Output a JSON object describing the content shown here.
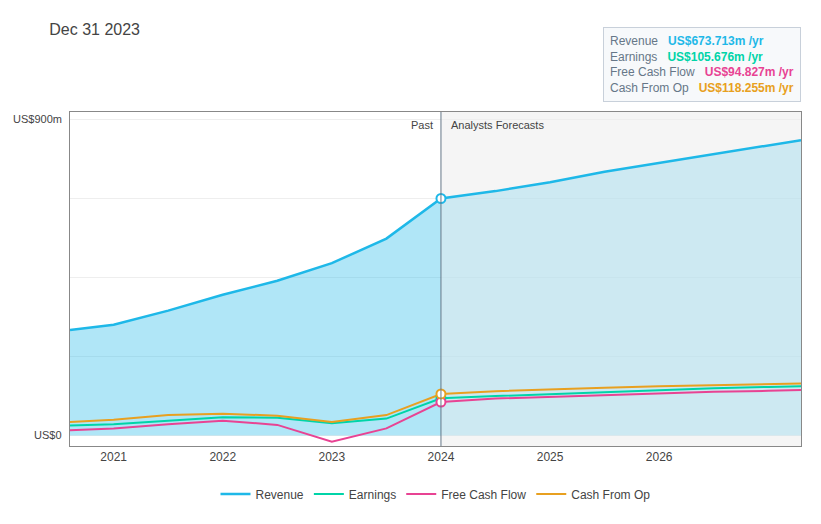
{
  "chart_data": {
    "type": "line",
    "title": "Dec 31 2023",
    "x": [
      2020.6,
      2021.0,
      2021.5,
      2022.0,
      2022.5,
      2023.0,
      2023.5,
      2024.0,
      2024.5,
      2025.0,
      2025.5,
      2026.0,
      2026.5,
      2027.0,
      2027.3
    ],
    "series": [
      {
        "name": "Revenue",
        "color": "#1eb8e8",
        "values": [
          300,
          315,
          355,
          400,
          440,
          490,
          560,
          674,
          695,
          720,
          750,
          775,
          800,
          825,
          840
        ]
      },
      {
        "name": "Earnings",
        "color": "#00d4a8",
        "values": [
          28,
          32,
          42,
          52,
          50,
          35,
          48,
          106,
          112,
          118,
          124,
          130,
          134,
          138,
          140
        ]
      },
      {
        "name": "Free Cash Flow",
        "color": "#e84393",
        "values": [
          15,
          20,
          32,
          42,
          30,
          -18,
          20,
          95,
          105,
          110,
          116,
          120,
          124,
          127,
          129
        ]
      },
      {
        "name": "Cash From Op",
        "color": "#e8a020",
        "values": [
          38,
          45,
          58,
          62,
          56,
          38,
          58,
          118,
          126,
          132,
          136,
          140,
          143,
          146,
          148
        ]
      }
    ],
    "xlim": [
      2020.6,
      2027.3
    ],
    "xticks": [
      2021,
      2022,
      2023,
      2024,
      2025,
      2026
    ],
    "ylim": [
      -30,
      920
    ],
    "yticks": [
      0,
      225,
      450,
      675,
      900
    ],
    "grid": true,
    "tick_labels": "x",
    "legend": "bottom",
    "divider": 2024.0,
    "region_labels": [
      "Past",
      "Analysts Forecasts"
    ],
    "y_labels": [
      {
        "value": 900,
        "label": "US$900m"
      },
      {
        "value": 0,
        "label": "US$0"
      }
    ],
    "tooltip_rows": [
      {
        "label": "Revenue",
        "value": "US$673.713m /yr"
      },
      {
        "label": "Earnings",
        "value": "US$105.676m /yr"
      },
      {
        "label": "Free Cash Flow",
        "value": "US$94.827m /yr"
      },
      {
        "label": "Cash From Op",
        "value": "US$118.255m /yr"
      }
    ]
  }
}
